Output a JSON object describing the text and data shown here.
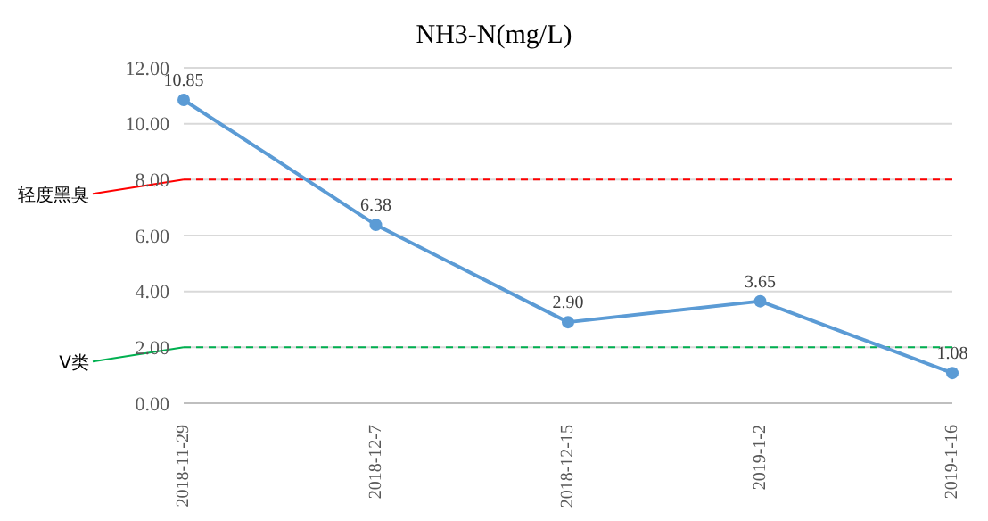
{
  "chart_data": {
    "type": "line",
    "title": "NH3-N(mg/L)",
    "categories": [
      "2018-11-29",
      "2018-12-7",
      "2018-12-15",
      "2019-1-2",
      "2019-1-16"
    ],
    "series": [
      {
        "color": "#5b9bd5",
        "values": [
          10.85,
          6.38,
          2.9,
          3.65,
          1.08
        ],
        "value_labels": [
          "10.85",
          "6.38",
          "2.90",
          "3.65",
          "1.08"
        ]
      }
    ],
    "ylim": [
      0,
      12
    ],
    "yticks": [
      {
        "value": 0,
        "label": "0.00"
      },
      {
        "value": 2,
        "label": "2.00"
      },
      {
        "value": 4,
        "label": "4.00"
      },
      {
        "value": 6,
        "label": "6.00"
      },
      {
        "value": 8,
        "label": "8.00"
      },
      {
        "value": 10,
        "label": "10.00"
      },
      {
        "value": 12,
        "label": "12.00"
      }
    ],
    "grid": "y",
    "marker": "circle",
    "line_style": "solid",
    "legend": false,
    "ref_lines": [
      {
        "axis": "y",
        "value": 8,
        "label": "轻度黑臭",
        "color": "#ff0000",
        "line_style": "dashed"
      },
      {
        "axis": "y",
        "value": 2,
        "label": "V类",
        "color": "#00b050",
        "line_style": "dashed"
      }
    ]
  }
}
